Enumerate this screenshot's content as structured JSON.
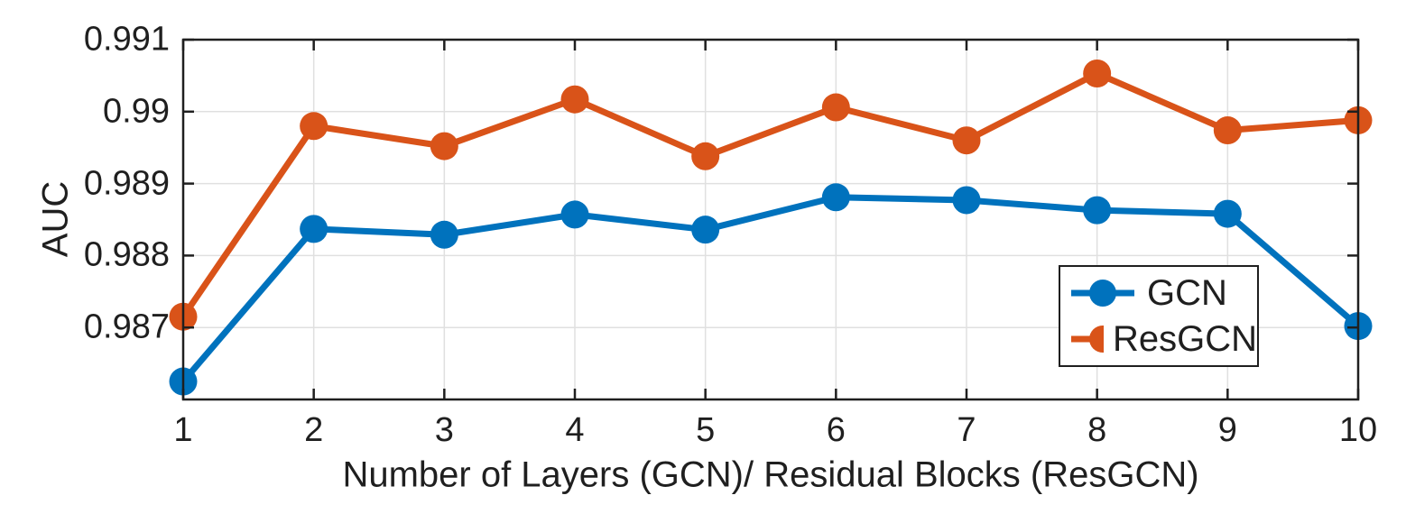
{
  "chart_data": {
    "type": "line",
    "title": "",
    "xlabel": "Number of Layers (GCN)/ Residual Blocks (ResGCN)",
    "ylabel": "AUC",
    "x": [
      1,
      2,
      3,
      4,
      5,
      6,
      7,
      8,
      9,
      10
    ],
    "xlim": [
      1,
      10
    ],
    "ylim": [
      0.986,
      0.991
    ],
    "xticks": [
      1,
      2,
      3,
      4,
      5,
      6,
      7,
      8,
      9,
      10
    ],
    "xtick_labels": [
      "1",
      "2",
      "3",
      "4",
      "5",
      "6",
      "7",
      "8",
      "9",
      "10"
    ],
    "yticks": [
      0.987,
      0.988,
      0.989,
      0.99,
      0.991
    ],
    "ytick_labels": [
      "0.987",
      "0.988",
      "0.989",
      "0.99",
      "0.991"
    ],
    "grid": true,
    "legend_position": "inside-lower-right",
    "series": [
      {
        "name": "GCN",
        "color": "#0072BD",
        "marker": "filled-circle",
        "values": [
          0.98625,
          0.98837,
          0.98829,
          0.98857,
          0.98836,
          0.98881,
          0.98877,
          0.98863,
          0.98858,
          0.98702
        ]
      },
      {
        "name": "ResGCN",
        "color": "#D95319",
        "marker": "filled-circle",
        "values": [
          0.98715,
          0.9898,
          0.98952,
          0.99017,
          0.98938,
          0.99006,
          0.9896,
          0.99053,
          0.98974,
          0.98988
        ]
      }
    ],
    "colors": {
      "axis": "#1f1f1f",
      "grid": "#e0e0e0",
      "background": "#ffffff"
    }
  }
}
